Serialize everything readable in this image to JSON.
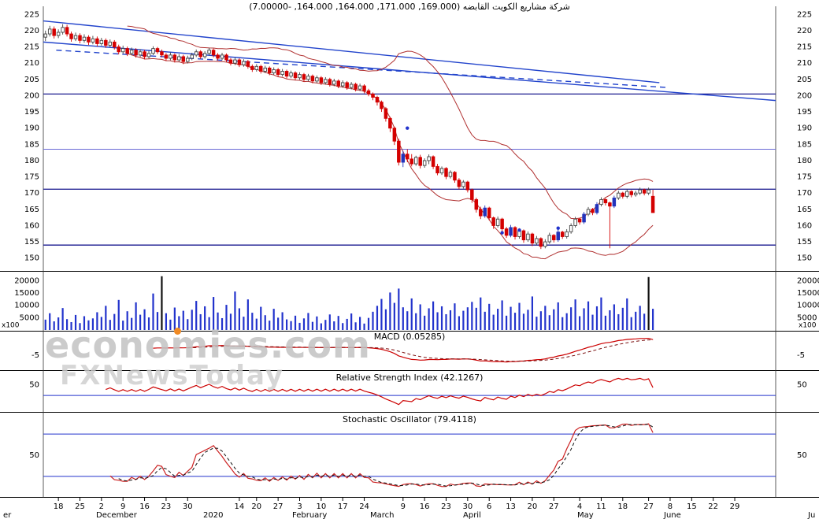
{
  "title": {
    "text": "شركة مشاريع الكويت القابضه (169.000, 171.000, 164.000, 164.000, -7.00000)"
  },
  "watermark": {
    "line1": "economies.com",
    "line2": "FXNewsToday"
  },
  "colors": {
    "candle_down": "#d40000",
    "candle_up_fill": "#ffffff",
    "candle_up_stroke": "#444444",
    "candle_strong_up": "#2233bb",
    "volume_bar": "#2233cc",
    "volume_spike": "#111111",
    "band": "#b03030",
    "trend": "#2244cc",
    "support": "#1a1a8f",
    "support_light": "#6b6bd6",
    "level_line": "#2233cc",
    "macd_line": "#cc0000",
    "macd_signal": "#7a0f0f",
    "rsi_line": "#cc0000",
    "stoch_k": "#cc2222",
    "stoch_d": "#111111",
    "separator": "#000000",
    "axis_text": "#000000"
  },
  "chart_data": {
    "type": "candlestick",
    "title": "شركة مشاريع الكويت القابضه (169.000, 171.000, 164.000, 164.000, -7.00000)",
    "symbol_name_ar": "شركة مشاريع الكويت القابضه",
    "quote": {
      "open": 169.0,
      "high": 171.0,
      "low": 164.0,
      "close": 164.0,
      "change": -7.0
    },
    "slots": 170,
    "price_axis": {
      "min": 150,
      "max": 225,
      "step": 5
    },
    "support_lines": [
      {
        "p": 200.5,
        "light": false
      },
      {
        "p": 183.5,
        "light": true
      },
      {
        "p": 171.2,
        "light": false
      },
      {
        "p": 154.0,
        "light": false
      }
    ],
    "trendlines": [
      {
        "i1": 0,
        "p1": 223.0,
        "i2": 143,
        "p2": 204.0,
        "dash": false
      },
      {
        "i1": 0,
        "p1": 216.5,
        "i2": 170,
        "p2": 198.5,
        "dash": false
      },
      {
        "i1": 3,
        "p1": 214.0,
        "i2": 145,
        "p2": 202.5,
        "dash": true
      }
    ],
    "dots": [
      {
        "i": 84,
        "p": 190.0
      },
      {
        "i": 106,
        "p": 157.8
      },
      {
        "i": 110,
        "p": 158.6
      },
      {
        "i": 119,
        "p": 159.2
      }
    ],
    "candles": [
      [
        218,
        220,
        216.8,
        219
      ],
      [
        219,
        221.5,
        218.2,
        220.5
      ],
      [
        220.5,
        221.3,
        217.6,
        218.5
      ],
      [
        218.5,
        220.4,
        217.7,
        219.5
      ],
      [
        219.5,
        222,
        218.8,
        221
      ],
      [
        221,
        221.8,
        218.2,
        219
      ],
      [
        219,
        219.7,
        216.6,
        217.5
      ],
      [
        217.5,
        219.4,
        216.8,
        218.5
      ],
      [
        218.5,
        219.2,
        216.1,
        217
      ],
      [
        217,
        218.9,
        216.3,
        218
      ],
      [
        218,
        218.6,
        215.6,
        216.5
      ],
      [
        216.5,
        218.4,
        215.8,
        217.5
      ],
      [
        217.5,
        218.2,
        215.2,
        216
      ],
      [
        216,
        217.8,
        215.4,
        217
      ],
      [
        217,
        217.6,
        214.7,
        215.5
      ],
      [
        215.5,
        217.3,
        214.9,
        216.5
      ],
      [
        216.5,
        217.1,
        214.2,
        215
      ],
      [
        215,
        215.7,
        212.7,
        213.5
      ],
      [
        213.5,
        215.4,
        212.9,
        214.5
      ],
      [
        214.5,
        215.1,
        212.2,
        213
      ],
      [
        213,
        214.8,
        212.4,
        214
      ],
      [
        214,
        214.6,
        211.7,
        212.5
      ],
      [
        212.5,
        214.3,
        211.9,
        213.5
      ],
      [
        213.5,
        214.1,
        211.2,
        212
      ],
      [
        212,
        213.8,
        211.4,
        213
      ],
      [
        213,
        215.2,
        212.5,
        214.5
      ],
      [
        214.5,
        215,
        212.8,
        213.5
      ],
      [
        213.5,
        214.2,
        211.8,
        212.5
      ],
      [
        212.5,
        213.1,
        210.7,
        211.5
      ],
      [
        211.5,
        213.3,
        210.9,
        212.5
      ],
      [
        212.5,
        213,
        210.2,
        211
      ],
      [
        211,
        212.8,
        210.4,
        212
      ],
      [
        212,
        212.6,
        209.7,
        210.5
      ],
      [
        210.5,
        212.3,
        209.9,
        211.5
      ],
      [
        211.5,
        213.2,
        210.9,
        212.5
      ],
      [
        212.5,
        214.2,
        211.9,
        213.5
      ],
      [
        213.5,
        214,
        211.3,
        212
      ],
      [
        212,
        213.7,
        211.4,
        213
      ],
      [
        213,
        214.7,
        212.4,
        214
      ],
      [
        214,
        214.5,
        211.8,
        212.5
      ],
      [
        212.5,
        213.1,
        210.8,
        211.5
      ],
      [
        211.5,
        213.2,
        210.9,
        212.5
      ],
      [
        212.5,
        213,
        210.3,
        211
      ],
      [
        211,
        211.6,
        209.3,
        210
      ],
      [
        210,
        211.7,
        209.4,
        211
      ],
      [
        211,
        211.5,
        208.8,
        209.5
      ],
      [
        209.5,
        211.2,
        208.9,
        210.5
      ],
      [
        210.5,
        211,
        208.3,
        209
      ],
      [
        209,
        209.6,
        207.3,
        208
      ],
      [
        208,
        209.7,
        207.4,
        209
      ],
      [
        209,
        209.5,
        206.8,
        207.5
      ],
      [
        207.5,
        209.2,
        206.9,
        208.5
      ],
      [
        208.5,
        209,
        206.3,
        207
      ],
      [
        207,
        208.7,
        206.4,
        208
      ],
      [
        208,
        208.5,
        205.8,
        206.5
      ],
      [
        206.5,
        208.2,
        205.9,
        207.5
      ],
      [
        207.5,
        208,
        205.3,
        206
      ],
      [
        206,
        207.7,
        205.4,
        207
      ],
      [
        207,
        207.5,
        204.8,
        205.5
      ],
      [
        205.5,
        207.2,
        204.9,
        206.5
      ],
      [
        206.5,
        207,
        204.3,
        205
      ],
      [
        205,
        206.7,
        204.4,
        206
      ],
      [
        206,
        206.5,
        203.8,
        204.5
      ],
      [
        204.5,
        206.2,
        203.9,
        205.5
      ],
      [
        205.5,
        206,
        203.3,
        204
      ],
      [
        204,
        205.7,
        203.4,
        205
      ],
      [
        205,
        205.5,
        202.8,
        203.5
      ],
      [
        203.5,
        205.2,
        202.9,
        204.5
      ],
      [
        204.5,
        205,
        202.3,
        203
      ],
      [
        203,
        204.7,
        202.4,
        204
      ],
      [
        204,
        204.5,
        201.8,
        202.5
      ],
      [
        202.5,
        204.2,
        201.9,
        203.5
      ],
      [
        203.5,
        204,
        201.3,
        202
      ],
      [
        202,
        203.7,
        201.4,
        203
      ],
      [
        203,
        203.5,
        200.7,
        201.5
      ],
      [
        201.5,
        202.1,
        199.8,
        200.5
      ],
      [
        200.5,
        201,
        198.6,
        199.5
      ],
      [
        199.5,
        200,
        197,
        198
      ],
      [
        198,
        198.5,
        195,
        196
      ],
      [
        196,
        196.5,
        192,
        193
      ],
      [
        193,
        193.5,
        188.8,
        190
      ],
      [
        190,
        190.5,
        184.8,
        186
      ],
      [
        186,
        186.8,
        178.5,
        179.5
      ],
      [
        179.5,
        183,
        178,
        182
      ],
      [
        182,
        183.5,
        179.5,
        180.5
      ],
      [
        180.5,
        182,
        178.2,
        179
      ],
      [
        179,
        181.5,
        178.4,
        181
      ],
      [
        181,
        181.8,
        177.6,
        178.5
      ],
      [
        178.5,
        180.7,
        177.8,
        180
      ],
      [
        180,
        181.9,
        178.9,
        181.2
      ],
      [
        181.2,
        181.6,
        177.4,
        178.2
      ],
      [
        178.2,
        179,
        175.5,
        176.2
      ],
      [
        176.2,
        178.2,
        175.6,
        177.6
      ],
      [
        177.6,
        178,
        174.3,
        175.1
      ],
      [
        175.1,
        177,
        174.5,
        176.4
      ],
      [
        176.4,
        176.8,
        173.2,
        174
      ],
      [
        174,
        174.6,
        171.2,
        172
      ],
      [
        172,
        174,
        171.4,
        173.4
      ],
      [
        173.4,
        173.8,
        170.2,
        171
      ],
      [
        171,
        171.4,
        167,
        168
      ],
      [
        168,
        168.6,
        164,
        165
      ],
      [
        165,
        165.8,
        162,
        163
      ],
      [
        163,
        166.2,
        162.4,
        165.4
      ],
      [
        165.4,
        165.8,
        161.6,
        162.4
      ],
      [
        162.4,
        162.8,
        159,
        160
      ],
      [
        160,
        162.8,
        159.4,
        162
      ],
      [
        162,
        162.4,
        158.2,
        159
      ],
      [
        159,
        159.6,
        156.2,
        157
      ],
      [
        157,
        160.2,
        156.4,
        159.4
      ],
      [
        159.4,
        159.8,
        155.7,
        156.6
      ],
      [
        156.6,
        159.2,
        156,
        158.4
      ],
      [
        158.4,
        158.8,
        154.7,
        155.6
      ],
      [
        155.6,
        158.2,
        155,
        157.4
      ],
      [
        157.4,
        157.8,
        153.7,
        154.6
      ],
      [
        154.6,
        156.8,
        154,
        156
      ],
      [
        156,
        156.4,
        152.8,
        153.6
      ],
      [
        153.6,
        155.8,
        153,
        155
      ],
      [
        155,
        157.8,
        154.4,
        157
      ],
      [
        157,
        157.4,
        154.8,
        155.6
      ],
      [
        155.6,
        158.8,
        155,
        158
      ],
      [
        158,
        158.4,
        155.9,
        156.6
      ],
      [
        156.6,
        158.9,
        156,
        158.1
      ],
      [
        158.1,
        160.7,
        157.5,
        160
      ],
      [
        160,
        162.7,
        159.4,
        162
      ],
      [
        162,
        162.4,
        160.3,
        161.1
      ],
      [
        161.1,
        164.2,
        160.5,
        163.5
      ],
      [
        163.5,
        165.7,
        162.9,
        165
      ],
      [
        165,
        165.4,
        163.2,
        164
      ],
      [
        164,
        167.2,
        163.4,
        166.5
      ],
      [
        166.5,
        168.7,
        165.9,
        168
      ],
      [
        168,
        168.4,
        166.2,
        167
      ],
      [
        167,
        167.4,
        153,
        166
      ],
      [
        166,
        169.2,
        165.4,
        168.5
      ],
      [
        168.5,
        170.7,
        167.9,
        170
      ],
      [
        170,
        170.4,
        168.3,
        169
      ],
      [
        169,
        171.2,
        168.4,
        170.5
      ],
      [
        170.5,
        170.9,
        168.7,
        169.5
      ],
      [
        169.5,
        170.7,
        168.9,
        170
      ],
      [
        170,
        171.7,
        169.4,
        171
      ],
      [
        171,
        171.4,
        169.3,
        170
      ],
      [
        170,
        171.7,
        169.4,
        171
      ],
      [
        169,
        171,
        164,
        164
      ]
    ],
    "volumes": [
      4200,
      6800,
      3500,
      5100,
      8900,
      4400,
      3200,
      6100,
      2800,
      5600,
      3900,
      4700,
      7200,
      5300,
      9800,
      4100,
      6500,
      12200,
      3800,
      7600,
      4900,
      11200,
      6200,
      8400,
      5100,
      14800,
      7300,
      21800,
      6800,
      4200,
      9100,
      5600,
      7800,
      4400,
      8200,
      11800,
      6400,
      9600,
      5200,
      13400,
      7100,
      4800,
      10200,
      6600,
      15600,
      8800,
      5400,
      12400,
      7000,
      4600,
      9400,
      6000,
      3800,
      8600,
      5000,
      7200,
      4300,
      3600,
      5800,
      2900,
      4700,
      6900,
      3300,
      5500,
      2700,
      4100,
      6300,
      3500,
      5700,
      2800,
      4500,
      6700,
      3100,
      5300,
      2600,
      4900,
      7400,
      9800,
      12600,
      8400,
      15200,
      11000,
      16800,
      9200,
      7600,
      12800,
      6800,
      10400,
      5800,
      8800,
      11600,
      7200,
      9600,
      6400,
      8000,
      10800,
      5600,
      7800,
      9200,
      11400,
      9000,
      13200,
      7400,
      10600,
      6200,
      8600,
      12000,
      5800,
      9400,
      7000,
      11000,
      6600,
      8200,
      13600,
      5400,
      7600,
      9800,
      6000,
      8400,
      11200,
      5200,
      6800,
      9200,
      12400,
      5600,
      8800,
      11600,
      6200,
      9600,
      13200,
      5800,
      8000,
      10400,
      6400,
      9000,
      12800,
      5200,
      7400,
      9800,
      6600,
      21500,
      8600
    ],
    "volume_axis": {
      "ticks": [
        5000,
        10000,
        15000,
        20000
      ],
      "multiplier": "x100",
      "spike_threshold": 20000
    },
    "panels": {
      "macd": {
        "label": "MACD (0.05285)",
        "value": 0.05285,
        "tick_label": "-5",
        "tick_value": -5,
        "params": [
          12,
          26,
          9
        ]
      },
      "rsi": {
        "label": "Relative Strength Index (42.1267)",
        "value": 42.1267,
        "tick_label": "50",
        "tick_value": 50,
        "levels": [
          30
        ],
        "period": 14
      },
      "stoch": {
        "label": "Stochastic Oscillator (79.4118)",
        "value": 79.4118,
        "tick_label": "50",
        "tick_value": 50,
        "levels": [
          80,
          20
        ],
        "params": [
          14,
          3,
          3
        ]
      }
    },
    "x_axis": {
      "date_ticks": [
        [
          "18",
          3
        ],
        [
          "25",
          8
        ],
        [
          "2",
          13
        ],
        [
          "9",
          18
        ],
        [
          "16",
          23
        ],
        [
          "23",
          28
        ],
        [
          "30",
          33
        ],
        [
          "14",
          45
        ],
        [
          "20",
          49
        ],
        [
          "27",
          54
        ],
        [
          "3",
          59
        ],
        [
          "10",
          64
        ],
        [
          "17",
          69
        ],
        [
          "24",
          74
        ],
        [
          "9",
          83
        ],
        [
          "16",
          88
        ],
        [
          "23",
          93
        ],
        [
          "30",
          98
        ],
        [
          "6",
          103
        ],
        [
          "13",
          108
        ],
        [
          "20",
          113
        ],
        [
          "27",
          118
        ],
        [
          "4",
          124
        ],
        [
          "11",
          129
        ],
        [
          "18",
          134
        ],
        [
          "27",
          140
        ],
        [
          "8",
          145
        ],
        [
          "15",
          150
        ],
        [
          "22",
          155
        ],
        [
          "29",
          160
        ]
      ],
      "month_labels": [
        [
          "er",
          4
        ],
        [
          "December",
          122
        ],
        [
          "2020",
          258
        ],
        [
          "February",
          371
        ],
        [
          "March",
          470
        ],
        [
          "April",
          588
        ],
        [
          "May",
          733
        ],
        [
          "June",
          843
        ],
        [
          "Ju",
          1026
        ]
      ]
    }
  }
}
